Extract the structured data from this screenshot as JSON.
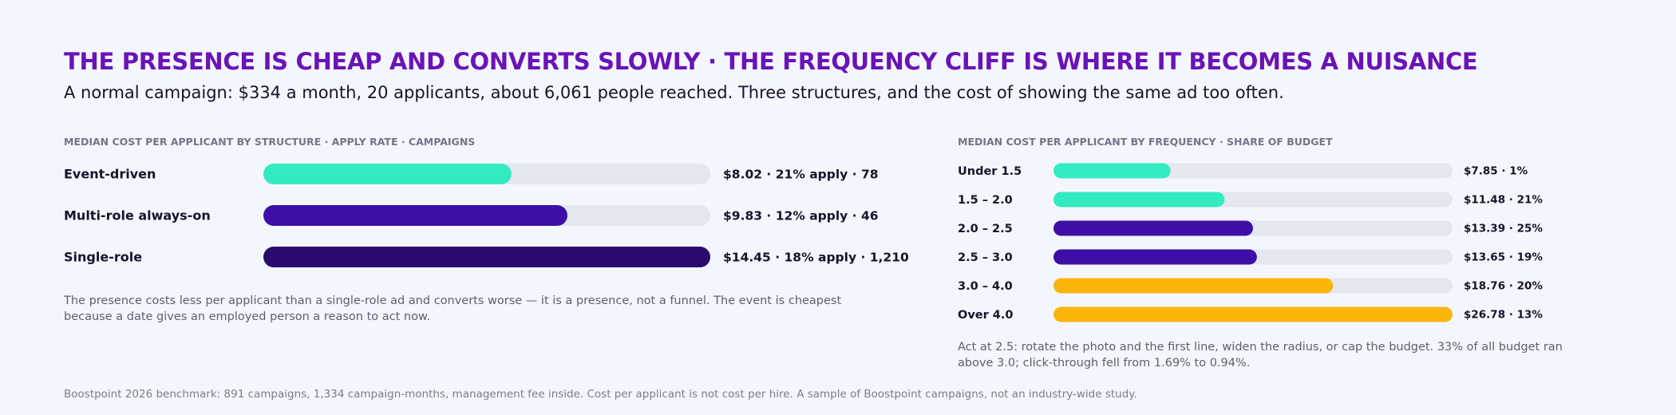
{
  "header": {
    "title": "THE PRESENCE IS CHEAP AND CONVERTS SLOWLY · THE FREQUENCY CLIFF IS WHERE IT BECOMES A NUISANCE",
    "subtitle": "A normal campaign: $334 a month, 20 applicants, about 6,061 people reached. Three structures, and the cost of showing the same ad too often."
  },
  "colors": {
    "track": "#e4e6f0",
    "teal": "#33ebc0",
    "purple": "#3e0fa6",
    "deep_purple": "#2a0a6e",
    "amber": "#fbb40a"
  },
  "chart_data": [
    {
      "type": "bar",
      "orientation": "horizontal",
      "title": "MEDIAN COST PER APPLICANT BY STRUCTURE · APPLY RATE · CAMPAIGNS",
      "categories": [
        "Event-driven",
        "Multi-role always-on",
        "Single-role"
      ],
      "values": [
        8.02,
        9.83,
        14.45
      ],
      "apply_rate_pct": [
        21,
        12,
        18
      ],
      "campaigns": [
        78,
        46,
        1210
      ],
      "value_labels": [
        "$8.02 · 21% apply · 78",
        "$9.83 · 12% apply · 46",
        "$14.45 · 18% apply · 1,210"
      ],
      "bar_colors": [
        "teal",
        "purple",
        "deep_purple"
      ],
      "xlim": [
        0,
        14.45
      ],
      "grid": false
    },
    {
      "type": "bar",
      "orientation": "horizontal",
      "title": "MEDIAN COST PER APPLICANT BY FREQUENCY · SHARE OF BUDGET",
      "categories": [
        "Under 1.5",
        "1.5 – 2.0",
        "2.0 – 2.5",
        "2.5 – 3.0",
        "3.0 – 4.0",
        "Over 4.0"
      ],
      "values": [
        7.85,
        11.48,
        13.39,
        13.65,
        18.76,
        26.78
      ],
      "budget_share_pct": [
        1,
        21,
        25,
        19,
        20,
        13
      ],
      "value_labels": [
        "$7.85 · 1%",
        "$11.48 · 21%",
        "$13.39 · 25%",
        "$13.65 · 19%",
        "$18.76 · 20%",
        "$26.78 · 13%"
      ],
      "bar_colors": [
        "teal",
        "teal",
        "purple",
        "purple",
        "amber",
        "amber"
      ],
      "xlim": [
        0,
        26.78
      ],
      "grid": false
    }
  ],
  "notes": {
    "left": "The presence costs less per applicant than a single-role ad and converts worse — it is a presence, not a funnel. The event is cheapest because a date gives an employed person a reason to act now.",
    "right": "Act at 2.5: rotate the photo and the first line, widen the radius, or cap the budget. 33% of all budget ran above 3.0; click-through fell from 1.69% to 0.94%."
  },
  "footer": "Boostpoint 2026 benchmark: 891 campaigns, 1,334 campaign-months, management fee inside. Cost per applicant is not cost per hire. A sample of Boostpoint campaigns, not an industry-wide study."
}
